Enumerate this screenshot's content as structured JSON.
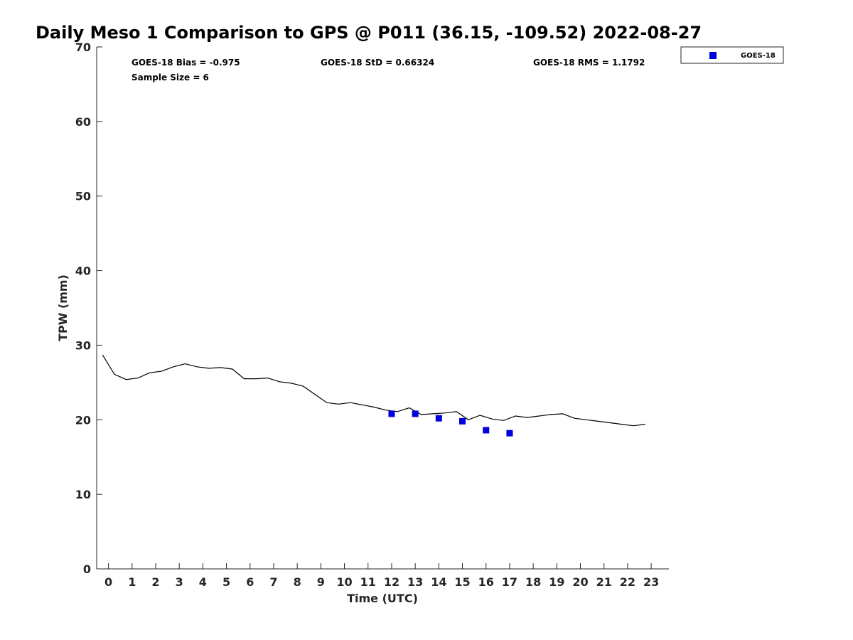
{
  "chart_data": {
    "type": "line",
    "title": "Daily Meso 1 Comparison to GPS @ P011 (36.15, -109.52) 2022-08-27",
    "xlabel": "Time (UTC)",
    "ylabel": "TPW (mm)",
    "xlim": [
      -0.5,
      23.75
    ],
    "ylim": [
      0,
      70
    ],
    "xticks": [
      0,
      1,
      2,
      3,
      4,
      5,
      6,
      7,
      8,
      9,
      10,
      11,
      12,
      13,
      14,
      15,
      16,
      17,
      18,
      19,
      20,
      21,
      22,
      23
    ],
    "yticks": [
      0,
      10,
      20,
      30,
      40,
      50,
      60,
      70
    ],
    "grid": false,
    "legend_position": "top-right (outside)",
    "stats": {
      "bias": "GOES-18 Bias = -0.975",
      "std": "GOES-18 StD = 0.66324",
      "rms": "GOES-18 RMS = 1.1792",
      "sample_size": "Sample Size = 6"
    },
    "series": [
      {
        "style": "line",
        "color": "#000000",
        "x": [
          -0.25,
          0.25,
          0.75,
          1.25,
          1.75,
          2.25,
          2.75,
          3.25,
          3.75,
          4.25,
          4.75,
          5.25,
          5.75,
          6.25,
          6.75,
          7.25,
          7.75,
          8.25,
          8.75,
          9.25,
          9.75,
          10.25,
          10.75,
          11.25,
          11.75,
          12.25,
          12.75,
          13.25,
          13.75,
          14.25,
          14.75,
          15.25,
          15.75,
          16.25,
          16.75,
          17.25,
          17.75,
          18.25,
          18.75,
          19.25,
          19.75,
          20.25,
          20.75,
          21.25,
          21.75,
          22.25,
          22.75
        ],
        "values": [
          28.7,
          26.1,
          25.4,
          25.6,
          26.3,
          26.5,
          27.1,
          27.5,
          27.1,
          26.9,
          27.0,
          26.8,
          25.5,
          25.5,
          25.6,
          25.1,
          24.9,
          24.5,
          23.4,
          22.3,
          22.1,
          22.3,
          22.0,
          21.7,
          21.3,
          21.1,
          21.6,
          20.7,
          20.8,
          20.9,
          21.1,
          20.0,
          20.6,
          20.1,
          19.9,
          20.5,
          20.3,
          20.5,
          20.7,
          20.8,
          20.2,
          20.0,
          19.8,
          19.6,
          19.4,
          19.2,
          19.4
        ]
      },
      {
        "name": "GOES-18",
        "style": "square-marker",
        "color": "#0000dd",
        "x": [
          12,
          13,
          14,
          15,
          16,
          17
        ],
        "values": [
          20.8,
          20.8,
          20.2,
          19.8,
          18.6,
          18.2
        ]
      }
    ]
  }
}
